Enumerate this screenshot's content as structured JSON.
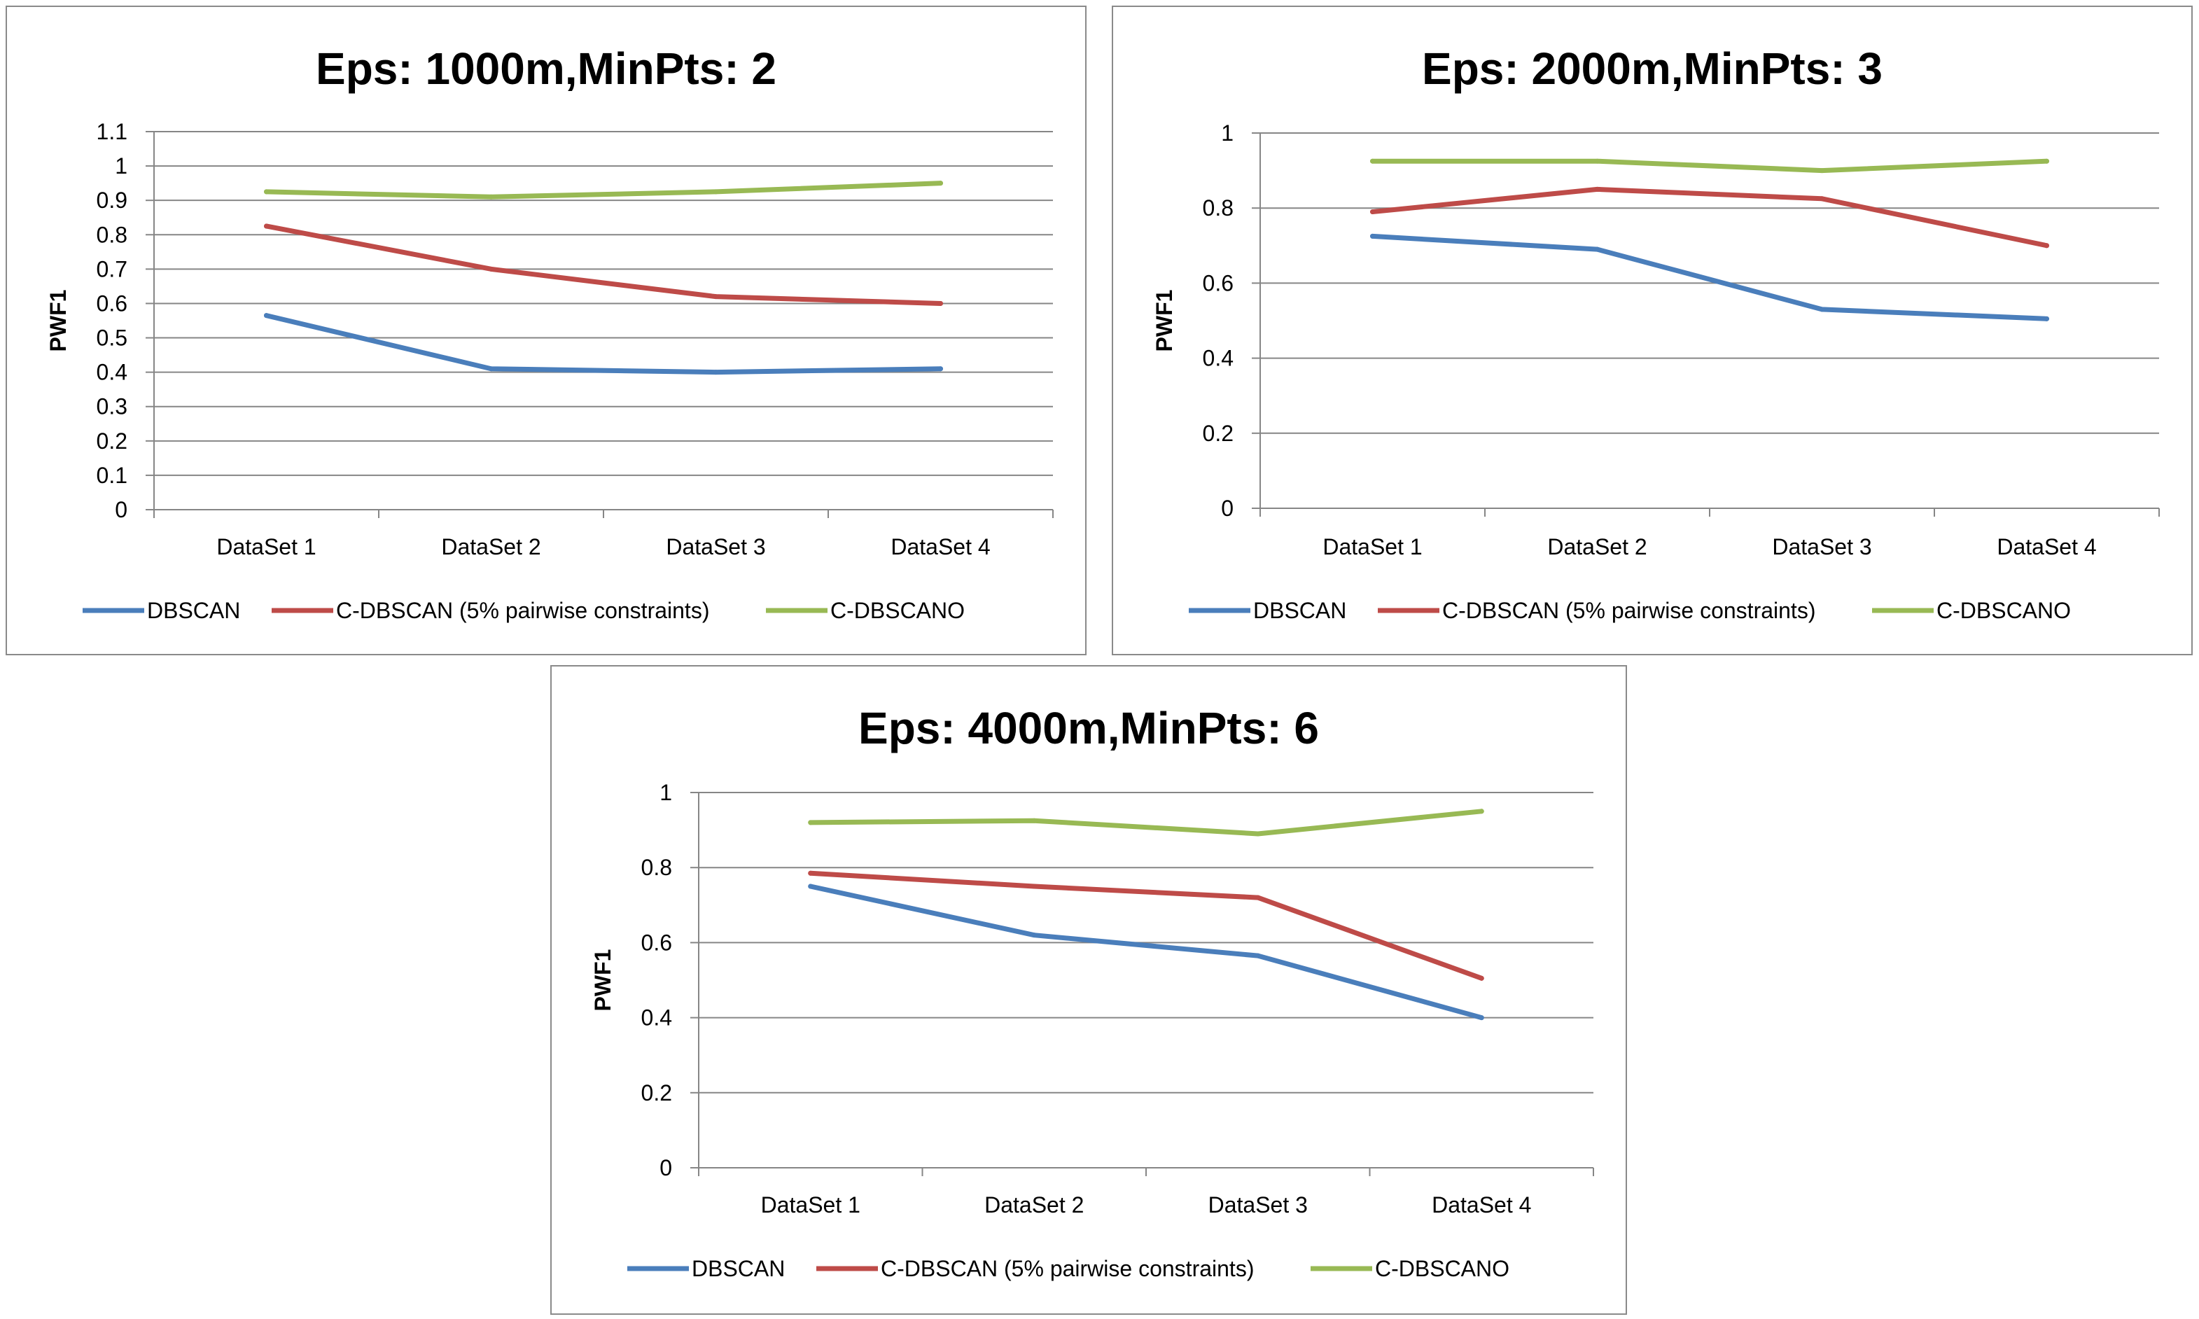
{
  "chart_data": [
    {
      "type": "line",
      "title": "Eps: 1000m,MinPts: 2",
      "xlabel": "",
      "ylabel": "PWF1",
      "categories": [
        "DataSet 1",
        "DataSet 2",
        "DataSet 3",
        "DataSet 4"
      ],
      "ylim": [
        0,
        1.1
      ],
      "yticks": [
        "0",
        "0.1",
        "0.2",
        "0.3",
        "0.4",
        "0.5",
        "0.6",
        "0.7",
        "0.8",
        "0.9",
        "1",
        "1.1"
      ],
      "grid": true,
      "legend_position": "bottom",
      "series": [
        {
          "name": "DBSCAN",
          "color": "#4a7ebb",
          "values": [
            0.565,
            0.41,
            0.4,
            0.41
          ]
        },
        {
          "name": "C-DBSCAN (5% pairwise constraints)",
          "color": "#be4b48",
          "values": [
            0.825,
            0.7,
            0.62,
            0.6
          ]
        },
        {
          "name": "C-DBSCANO",
          "color": "#98b954",
          "values": [
            0.925,
            0.91,
            0.925,
            0.95
          ]
        }
      ]
    },
    {
      "type": "line",
      "title": "Eps: 2000m,MinPts: 3",
      "xlabel": "",
      "ylabel": "PWF1",
      "categories": [
        "DataSet 1",
        "DataSet 2",
        "DataSet 3",
        "DataSet 4"
      ],
      "ylim": [
        0,
        1
      ],
      "yticks": [
        "0",
        "0.2",
        "0.4",
        "0.6",
        "0.8",
        "1"
      ],
      "grid": true,
      "legend_position": "bottom",
      "series": [
        {
          "name": "DBSCAN",
          "color": "#4a7ebb",
          "values": [
            0.725,
            0.69,
            0.53,
            0.505
          ]
        },
        {
          "name": "C-DBSCAN (5% pairwise constraints)",
          "color": "#be4b48",
          "values": [
            0.79,
            0.85,
            0.825,
            0.7
          ]
        },
        {
          "name": "C-DBSCANO",
          "color": "#98b954",
          "values": [
            0.925,
            0.925,
            0.9,
            0.925
          ]
        }
      ]
    },
    {
      "type": "line",
      "title": "Eps: 4000m,MinPts: 6",
      "xlabel": "",
      "ylabel": "PWF1",
      "categories": [
        "DataSet 1",
        "DataSet 2",
        "DataSet 3",
        "DataSet 4"
      ],
      "ylim": [
        0,
        1
      ],
      "yticks": [
        "0",
        "0.2",
        "0.4",
        "0.6",
        "0.8",
        "1"
      ],
      "grid": true,
      "legend_position": "bottom",
      "series": [
        {
          "name": "DBSCAN",
          "color": "#4a7ebb",
          "values": [
            0.75,
            0.62,
            0.565,
            0.4
          ]
        },
        {
          "name": "C-DBSCAN (5% pairwise constraints)",
          "color": "#be4b48",
          "values": [
            0.785,
            0.75,
            0.72,
            0.505
          ]
        },
        {
          "name": "C-DBSCANO",
          "color": "#98b954",
          "values": [
            0.92,
            0.925,
            0.89,
            0.95
          ]
        }
      ]
    }
  ]
}
